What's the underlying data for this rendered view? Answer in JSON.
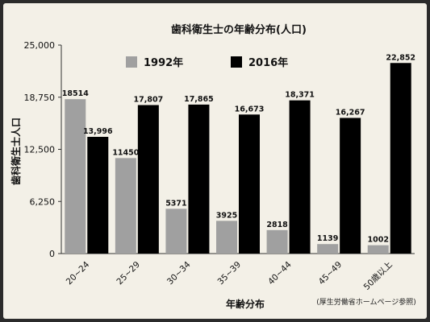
{
  "chart_data": {
    "type": "bar",
    "title": "歯科衛生士の年齢分布(人口)",
    "xlabel": "年齢分布",
    "ylabel": "歯科衛生士人口",
    "source_note": "(厚生労働省ホームページ参照)",
    "categories": [
      "20~24",
      "25~29",
      "30~34",
      "35~39",
      "40~44",
      "45~49",
      "50歳以上"
    ],
    "ylim": [
      0,
      25000
    ],
    "yticks": [
      "0",
      "6,250",
      "12,500",
      "18,750",
      "25,000"
    ],
    "ytick_values": [
      0,
      6250,
      12500,
      18750,
      25000
    ],
    "legend_position": "top",
    "grid": false,
    "series": [
      {
        "name": "1992年",
        "color": "#a0a0a0",
        "values": [
          18514,
          11450,
          5371,
          3925,
          2818,
          1139,
          1002
        ],
        "labels": [
          "18514",
          "11450",
          "5371",
          "3925",
          "2818",
          "1139",
          "1002"
        ]
      },
      {
        "name": "2016年",
        "color": "#000000",
        "values": [
          13996,
          17807,
          17865,
          16673,
          18371,
          16267,
          22852
        ],
        "labels": [
          "13,996",
          "17,807",
          "17,865",
          "16,673",
          "18,371",
          "16,267",
          "22,852"
        ]
      }
    ]
  }
}
